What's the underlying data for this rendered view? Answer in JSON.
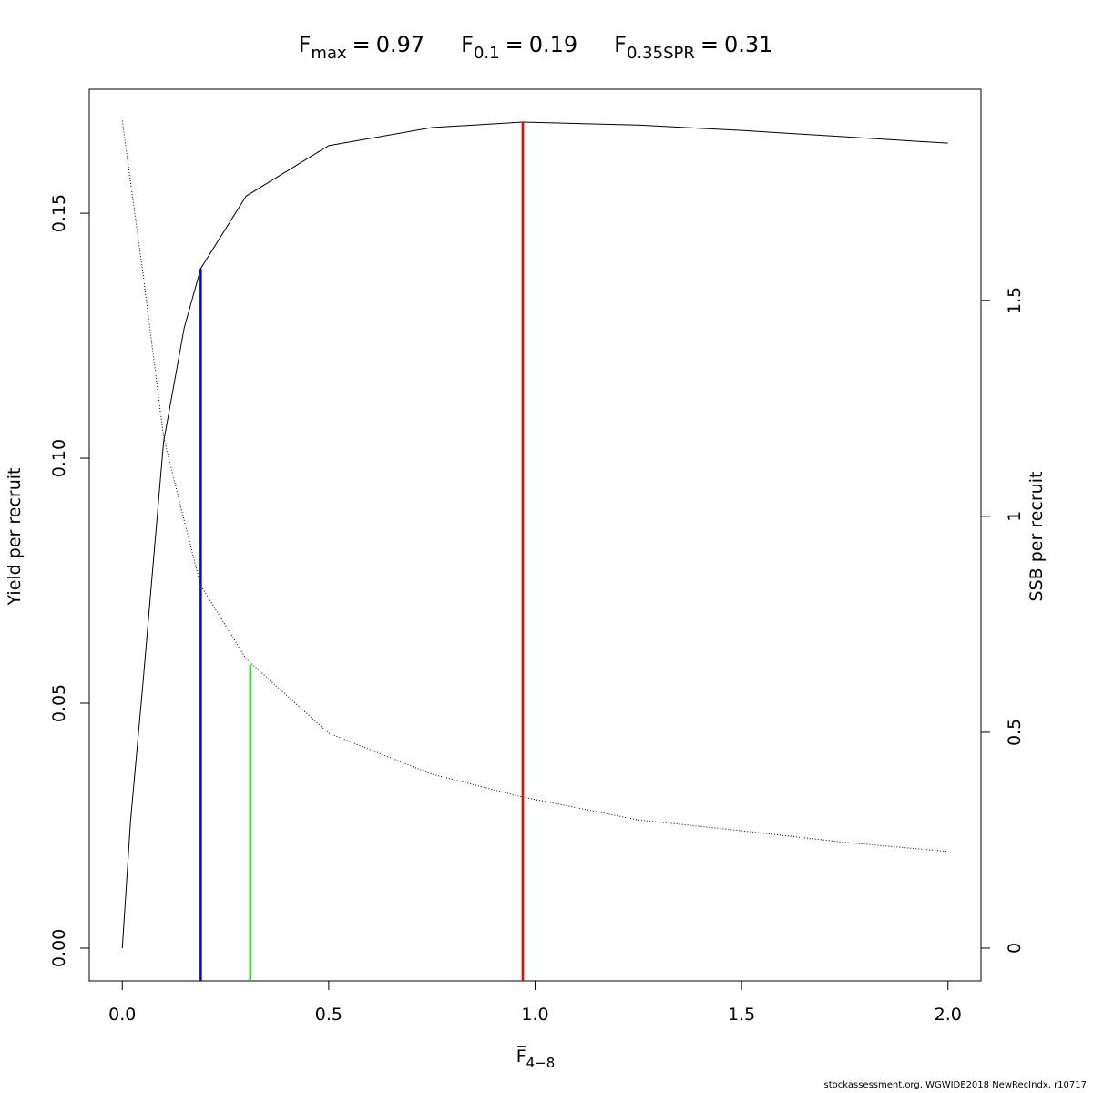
{
  "chart_data": {
    "type": "line",
    "title": [
      {
        "main": "F",
        "sub": "max",
        "relation": "=",
        "value": 0.97
      },
      {
        "main": "F",
        "sub": "0.1",
        "relation": "=",
        "value": 0.19
      },
      {
        "main": "F",
        "sub": "0.35SPR",
        "relation": "=",
        "value": 0.31
      }
    ],
    "xlabel": {
      "main": "F̅",
      "sub": "4−8"
    },
    "ylabel": "Yield per recruit",
    "y2label": "SSB per recruit",
    "footnote": "stockassessment.org, WGWIDE2018  NewRecIndx, r10717",
    "x": [
      0,
      0.02,
      0.05,
      0.1,
      0.15,
      0.19,
      0.3,
      0.5,
      0.75,
      0.97,
      1.25,
      1.5,
      1.75,
      2.0
    ],
    "series": [
      {
        "values": [
          0,
          0.026,
          0.054,
          0.1033,
          0.1266,
          0.1387,
          0.1535,
          0.1638,
          0.1675,
          0.1686,
          0.168,
          0.1669,
          0.1656,
          0.1643
        ],
        "color": "#000000",
        "linestyle": "solid"
      },
      {
        "values": [
          1.916,
          1.774,
          1.563,
          1.184,
          0.99,
          0.84,
          0.67,
          0.498,
          0.403,
          0.35,
          0.297,
          0.272,
          0.245,
          0.224
        ],
        "color": "#000000",
        "linestyle": "dotted",
        "axis": "y2"
      }
    ],
    "markers": [
      {
        "color": "#ff0000",
        "y": 0.1686,
        "axis": "y"
      },
      {
        "color": "#0000ff",
        "y": 0.1387,
        "axis": "y"
      },
      {
        "color": "#00ff00",
        "y": 0.656,
        "axis": "y2"
      }
    ],
    "xlim": [
      -0.08,
      2.08
    ],
    "xticks": [
      {
        "value": 0,
        "label": "0.0"
      },
      {
        "value": 0.5,
        "label": "0.5"
      },
      {
        "value": 1,
        "label": "1.0"
      },
      {
        "value": 1.5,
        "label": "1.5"
      },
      {
        "value": 2,
        "label": "2.0"
      }
    ],
    "ylim": [
      -0.0067,
      0.1753
    ],
    "yticks": [
      {
        "value": 0,
        "label": "0.00"
      },
      0.05,
      {
        "value": 0.1,
        "label": "0.10"
      },
      0.15
    ],
    "y2lim": [
      -0.076,
      1.989
    ],
    "y2ticks": [
      0,
      0.5,
      1,
      1.5
    ]
  }
}
